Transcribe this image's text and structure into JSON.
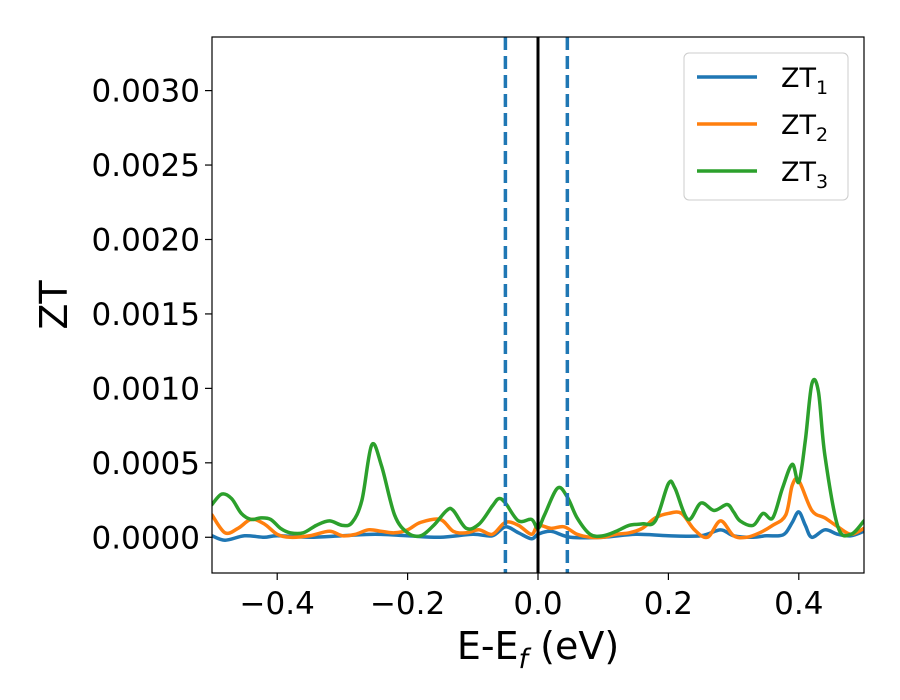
{
  "chart_data": {
    "type": "line",
    "xlabel": {
      "base": "E-E",
      "sub": "f",
      "unit": " (eV)"
    },
    "ylabel": "ZT",
    "xlim": [
      -0.5,
      0.5
    ],
    "ylim": [
      -0.00024,
      0.00336
    ],
    "xticks": [
      -0.4,
      -0.2,
      0.0,
      0.2,
      0.4
    ],
    "xtick_labels": [
      "−0.4",
      "−0.2",
      "0.0",
      "0.2",
      "0.4"
    ],
    "yticks": [
      0.0,
      0.0005,
      0.001,
      0.0015,
      0.002,
      0.0025,
      0.003
    ],
    "ytick_labels": [
      "0.0000",
      "0.0005",
      "0.0010",
      "0.0015",
      "0.0020",
      "0.0025",
      "0.0030"
    ],
    "grid": false,
    "legend_position": "top-right",
    "vlines": [
      {
        "x": -0.05,
        "style": "dashed",
        "color": "#1f77b4"
      },
      {
        "x": 0.045,
        "style": "dashed",
        "color": "#1f77b4"
      },
      {
        "x": 0.0,
        "style": "solid",
        "color": "#000000"
      }
    ],
    "series": [
      {
        "name": "ZT",
        "sub": "1",
        "color": "#1f77b4",
        "x": [
          -0.5,
          -0.48,
          -0.45,
          -0.42,
          -0.4,
          -0.35,
          -0.3,
          -0.25,
          -0.2,
          -0.15,
          -0.1,
          -0.07,
          -0.05,
          -0.03,
          -0.01,
          0.0,
          0.02,
          0.05,
          0.1,
          0.15,
          0.2,
          0.25,
          0.28,
          0.3,
          0.33,
          0.35,
          0.37,
          0.38,
          0.39,
          0.4,
          0.41,
          0.42,
          0.44,
          0.46,
          0.48,
          0.5
        ],
        "y": [
          1e-05,
          -2e-05,
          1e-05,
          0.0,
          1e-05,
          0.0,
          1e-05,
          2e-05,
          1e-05,
          0.0,
          2e-05,
          1e-05,
          7e-05,
          3e-05,
          -1e-05,
          2e-05,
          4e-05,
          0.0,
          0.0,
          2e-05,
          1e-05,
          1e-05,
          5e-05,
          1e-05,
          0.0,
          1e-05,
          1e-05,
          3e-05,
          0.0001,
          0.00017,
          8e-05,
          0.0,
          5e-05,
          2e-05,
          1e-05,
          4e-05
        ]
      },
      {
        "name": "ZT",
        "sub": "2",
        "color": "#ff7f0e",
        "x": [
          -0.5,
          -0.48,
          -0.46,
          -0.44,
          -0.42,
          -0.4,
          -0.38,
          -0.35,
          -0.32,
          -0.3,
          -0.28,
          -0.26,
          -0.24,
          -0.22,
          -0.2,
          -0.18,
          -0.15,
          -0.13,
          -0.11,
          -0.09,
          -0.07,
          -0.05,
          -0.03,
          -0.01,
          0.0,
          0.02,
          0.04,
          0.06,
          0.08,
          0.1,
          0.12,
          0.14,
          0.16,
          0.18,
          0.2,
          0.22,
          0.24,
          0.26,
          0.28,
          0.3,
          0.32,
          0.34,
          0.36,
          0.38,
          0.39,
          0.4,
          0.42,
          0.44,
          0.46,
          0.48,
          0.5
        ],
        "y": [
          0.00015,
          3e-05,
          6e-05,
          0.00012,
          9e-05,
          2e-05,
          0.0,
          1e-05,
          4e-05,
          1e-05,
          2e-05,
          5e-05,
          4e-05,
          3e-05,
          5e-05,
          0.0001,
          0.00012,
          4e-05,
          3e-05,
          5e-05,
          2e-05,
          0.0001,
          8e-05,
          2e-05,
          8e-05,
          6e-05,
          7e-05,
          2e-05,
          0.0,
          0.0,
          2e-05,
          3e-05,
          6e-05,
          0.00013,
          0.00016,
          0.00016,
          5e-05,
          0.0,
          0.00011,
          1e-05,
          0.0,
          3e-05,
          8e-05,
          0.00015,
          0.00035,
          0.00038,
          0.00018,
          0.00013,
          7e-05,
          2e-05,
          6e-05
        ]
      },
      {
        "name": "ZT",
        "sub": "3",
        "color": "#2ca02c",
        "x": [
          -0.5,
          -0.485,
          -0.47,
          -0.455,
          -0.44,
          -0.425,
          -0.41,
          -0.395,
          -0.38,
          -0.36,
          -0.34,
          -0.32,
          -0.3,
          -0.285,
          -0.27,
          -0.255,
          -0.24,
          -0.22,
          -0.2,
          -0.18,
          -0.16,
          -0.14,
          -0.13,
          -0.11,
          -0.09,
          -0.07,
          -0.06,
          -0.05,
          -0.03,
          -0.01,
          0.0,
          0.01,
          0.03,
          0.045,
          0.06,
          0.08,
          0.1,
          0.12,
          0.14,
          0.16,
          0.18,
          0.2,
          0.21,
          0.23,
          0.25,
          0.27,
          0.29,
          0.3,
          0.31,
          0.33,
          0.345,
          0.36,
          0.375,
          0.39,
          0.4,
          0.41,
          0.42,
          0.43,
          0.44,
          0.46,
          0.48,
          0.5
        ],
        "y": [
          0.00022,
          0.00029,
          0.00026,
          0.00016,
          0.00012,
          0.00013,
          0.00012,
          6e-05,
          3e-05,
          3e-05,
          8e-05,
          0.00011,
          8e-05,
          0.0001,
          0.00025,
          0.00062,
          0.00048,
          0.00015,
          3e-05,
          1e-05,
          8e-05,
          0.00018,
          0.00018,
          6e-05,
          9e-05,
          0.00021,
          0.00026,
          0.00023,
          0.00011,
          0.00012,
          6e-05,
          0.00015,
          0.00033,
          0.00027,
          0.00013,
          2e-05,
          1e-05,
          4e-05,
          8e-05,
          9e-05,
          0.00011,
          0.00036,
          0.00033,
          0.00012,
          0.00023,
          0.00018,
          0.00022,
          0.00017,
          0.00011,
          8e-05,
          0.00016,
          0.00013,
          0.00033,
          0.00049,
          0.00037,
          0.00065,
          0.00103,
          0.00098,
          0.00055,
          7e-05,
          2e-05,
          0.00011
        ]
      }
    ]
  }
}
